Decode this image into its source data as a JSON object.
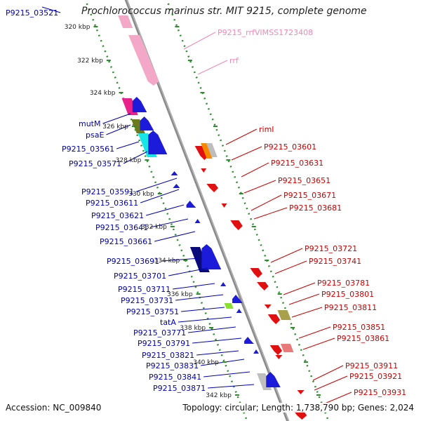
{
  "title": "Prochlorococcus marinus str. MIT 9215, complete genome",
  "accession_text": "Accession: NC_009840",
  "topology_text": "Topology: circular; Length: 1,738,790 bp; Genes: 2,024",
  "colors": {
    "backbone": "#8a8a8a",
    "track_dots": "#2e8b2e",
    "forward": "#1b1bd9",
    "reverse": "#e01010",
    "rna": "#f4a8c8",
    "leftLabel": "#0000b0",
    "rightLabel": "#cc0000",
    "rnaLabel": "#ef89b6"
  },
  "ticks": [
    {
      "text": "320 kbp"
    },
    {
      "text": "322 kbp"
    },
    {
      "text": "324 kbp"
    },
    {
      "text": "326 kbp"
    },
    {
      "text": "328 kbp"
    },
    {
      "text": "330 kbp"
    },
    {
      "text": "332 kbp"
    },
    {
      "text": "334 kbp"
    },
    {
      "text": "336 kbp"
    },
    {
      "text": "338 kbp"
    },
    {
      "text": "340 kbp"
    },
    {
      "text": "342 kbp"
    }
  ],
  "left_labels": [
    {
      "text": "P9215_03521"
    },
    {
      "text": "mutM"
    },
    {
      "text": "psaE"
    },
    {
      "text": "P9215_03561"
    },
    {
      "text": "P9215_03571"
    },
    {
      "text": "P9215_03591"
    },
    {
      "text": "P9215_03611"
    },
    {
      "text": "P9215_03621"
    },
    {
      "text": "P9215_03641"
    },
    {
      "text": "P9215_03661"
    },
    {
      "text": "P9215_03691"
    },
    {
      "text": "P9215_03701"
    },
    {
      "text": "P9215_03711"
    },
    {
      "text": "P9215_03731"
    },
    {
      "text": "P9215_03751"
    },
    {
      "text": "tatA"
    },
    {
      "text": "P9215_03771"
    },
    {
      "text": "P9215_03791"
    },
    {
      "text": "P9215_03821"
    },
    {
      "text": "P9215_03831"
    },
    {
      "text": "P9215_03841"
    },
    {
      "text": "P9215_03871"
    }
  ],
  "right_labels": [
    {
      "text": "P9215_rrfVIMSS1723408",
      "kind": "rna"
    },
    {
      "text": "rrf",
      "kind": "rna"
    },
    {
      "text": "rimI",
      "kind": "gene"
    },
    {
      "text": "P9215_03601",
      "kind": "gene"
    },
    {
      "text": "P9215_03631",
      "kind": "gene"
    },
    {
      "text": "P9215_03651",
      "kind": "gene"
    },
    {
      "text": "P9215_03671",
      "kind": "gene"
    },
    {
      "text": "P9215_03681",
      "kind": "gene"
    },
    {
      "text": "P9215_03721",
      "kind": "gene"
    },
    {
      "text": "P9215_03741",
      "kind": "gene"
    },
    {
      "text": "P9215_03781",
      "kind": "gene"
    },
    {
      "text": "P9215_03801",
      "kind": "gene"
    },
    {
      "text": "P9215_03811",
      "kind": "gene"
    },
    {
      "text": "P9215_03851",
      "kind": "gene"
    },
    {
      "text": "P9215_03861",
      "kind": "gene"
    },
    {
      "text": "P9215_03911",
      "kind": "gene"
    },
    {
      "text": "P9215_03921",
      "kind": "gene"
    },
    {
      "text": "P9215_03931",
      "kind": "gene"
    }
  ]
}
